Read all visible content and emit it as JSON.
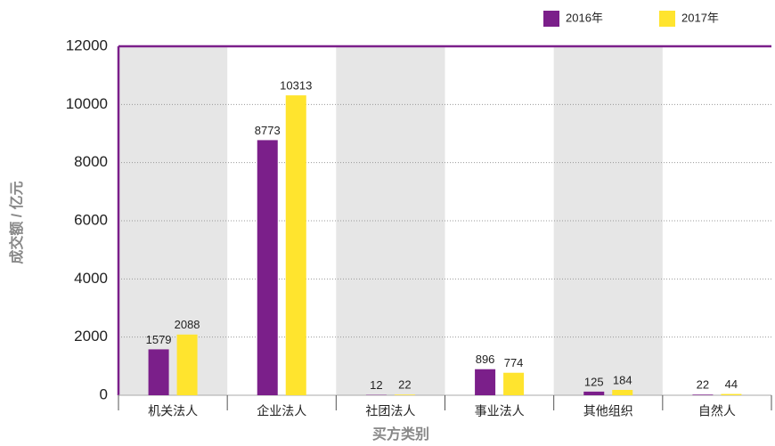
{
  "chart_data": {
    "type": "bar",
    "x_label": "买方类别",
    "y_label": "成交额 / 亿元",
    "categories": [
      "机关法人",
      "企业法人",
      "社团法人",
      "事业法人",
      "其他组织",
      "自然人"
    ],
    "series": [
      {
        "name": "2016年",
        "color": "#7b1f8a",
        "values": [
          1579,
          8773,
          12,
          896,
          125,
          22
        ]
      },
      {
        "name": "2017年",
        "color": "#ffe42e",
        "values": [
          2088,
          10313,
          22,
          774,
          184,
          44
        ]
      }
    ],
    "ylim": [
      0,
      12000
    ],
    "yticks": [
      0,
      2000,
      4000,
      6000,
      8000,
      10000,
      12000
    ],
    "grid": true
  }
}
